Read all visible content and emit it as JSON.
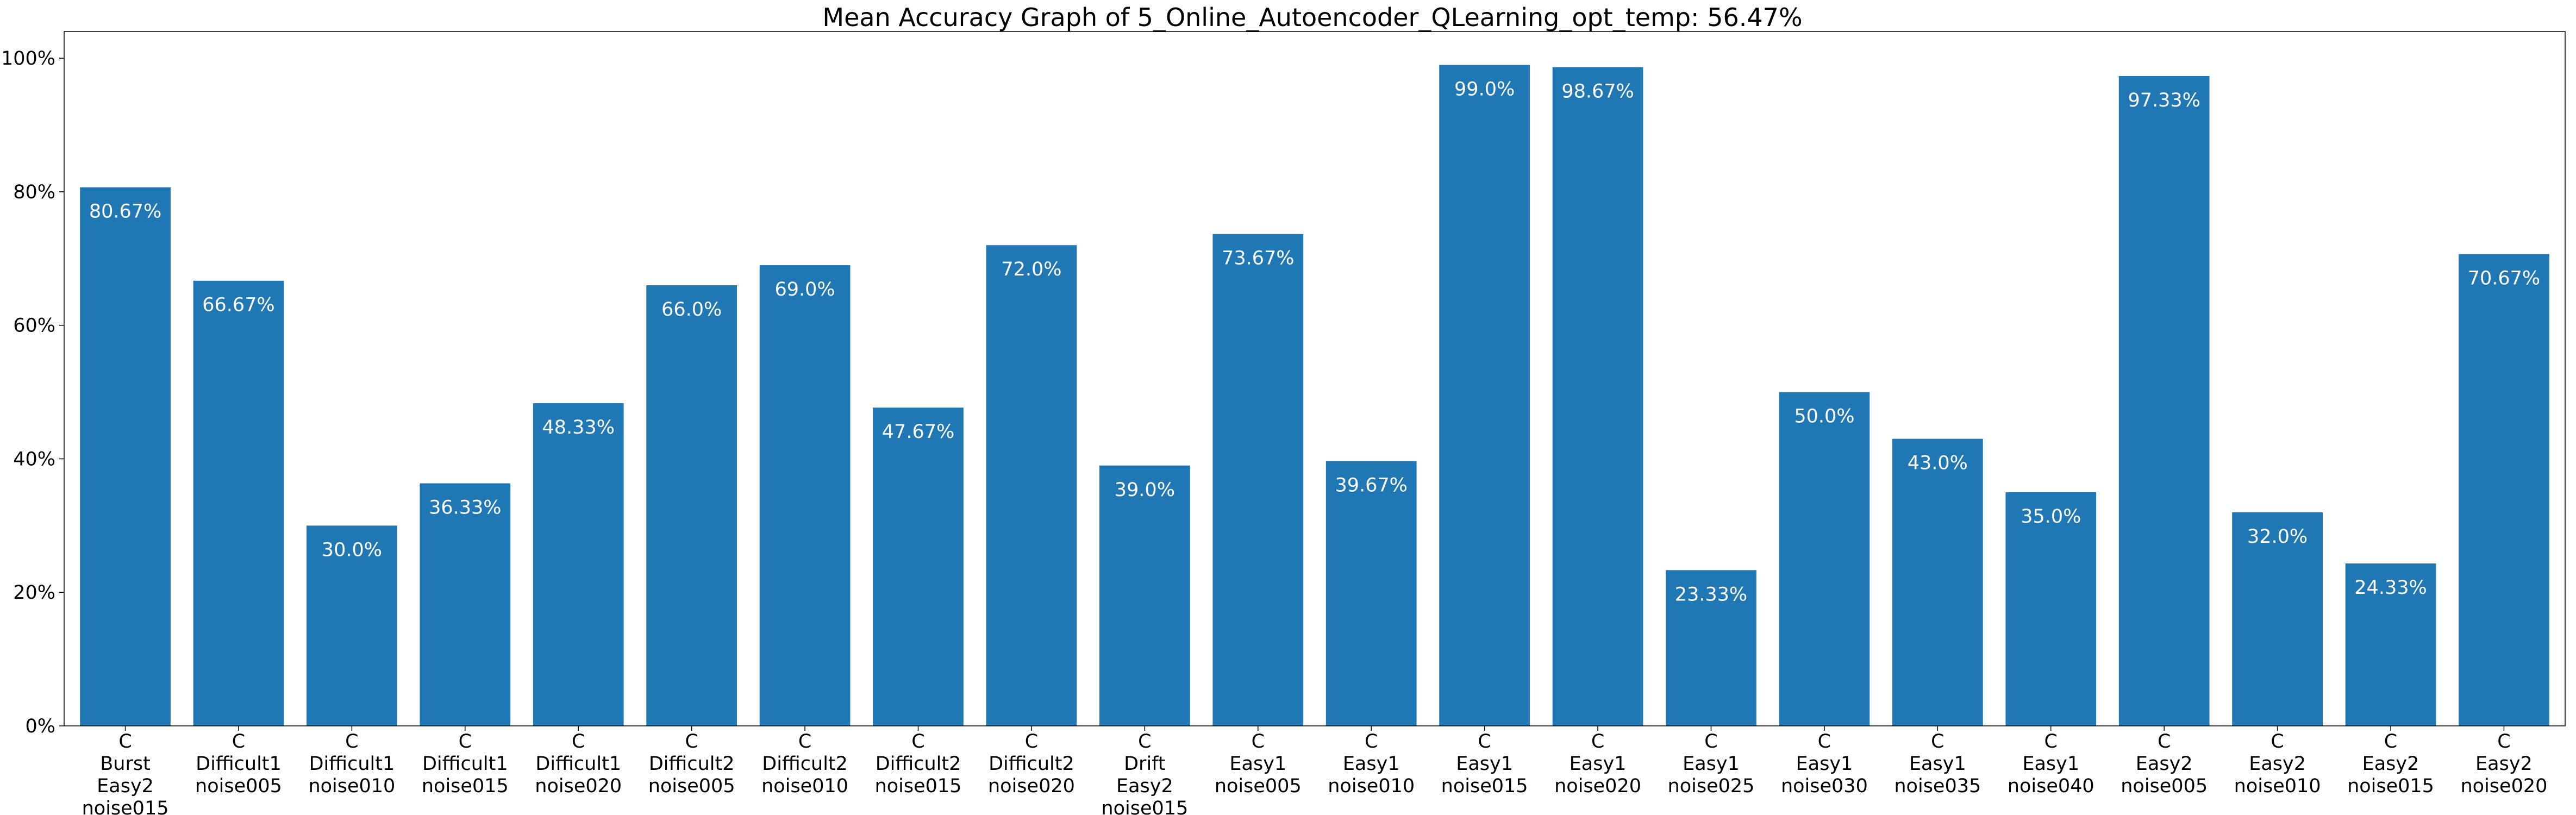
{
  "chart_data": {
    "type": "bar",
    "title": "Mean Accuracy Graph of 5_Online_Autoencoder_QLearning_opt_temp: 56.47%",
    "xlabel": "",
    "ylabel": "",
    "ylim": [
      0,
      104
    ],
    "y_ticks": [
      0,
      20,
      40,
      60,
      80,
      100
    ],
    "y_tick_labels": [
      "0%",
      "20%",
      "40%",
      "60%",
      "80%",
      "100%"
    ],
    "bar_color": "#1f77b4",
    "label_color": "#ffffff",
    "grid": false,
    "categories": [
      [
        "C",
        "Burst",
        "Easy2",
        "noise015"
      ],
      [
        "C",
        "Difficult1",
        "noise005"
      ],
      [
        "C",
        "Difficult1",
        "noise010"
      ],
      [
        "C",
        "Difficult1",
        "noise015"
      ],
      [
        "C",
        "Difficult1",
        "noise020"
      ],
      [
        "C",
        "Difficult2",
        "noise005"
      ],
      [
        "C",
        "Difficult2",
        "noise010"
      ],
      [
        "C",
        "Difficult2",
        "noise015"
      ],
      [
        "C",
        "Difficult2",
        "noise020"
      ],
      [
        "C",
        "Drift",
        "Easy2",
        "noise015"
      ],
      [
        "C",
        "Easy1",
        "noise005"
      ],
      [
        "C",
        "Easy1",
        "noise010"
      ],
      [
        "C",
        "Easy1",
        "noise015"
      ],
      [
        "C",
        "Easy1",
        "noise020"
      ],
      [
        "C",
        "Easy1",
        "noise025"
      ],
      [
        "C",
        "Easy1",
        "noise030"
      ],
      [
        "C",
        "Easy1",
        "noise035"
      ],
      [
        "C",
        "Easy1",
        "noise040"
      ],
      [
        "C",
        "Easy2",
        "noise005"
      ],
      [
        "C",
        "Easy2",
        "noise010"
      ],
      [
        "C",
        "Easy2",
        "noise015"
      ],
      [
        "C",
        "Easy2",
        "noise020"
      ]
    ],
    "values": [
      80.67,
      66.67,
      30.0,
      36.33,
      48.33,
      66.0,
      69.0,
      47.67,
      72.0,
      39.0,
      73.67,
      39.67,
      99.0,
      98.67,
      23.33,
      50.0,
      43.0,
      35.0,
      97.33,
      32.0,
      24.33,
      70.67
    ],
    "value_labels": [
      "80.67%",
      "66.67%",
      "30.0%",
      "36.33%",
      "48.33%",
      "66.0%",
      "69.0%",
      "47.67%",
      "72.0%",
      "39.0%",
      "73.67%",
      "39.67%",
      "99.0%",
      "98.67%",
      "23.33%",
      "50.0%",
      "43.0%",
      "35.0%",
      "97.33%",
      "32.0%",
      "24.33%",
      "70.67%"
    ]
  }
}
